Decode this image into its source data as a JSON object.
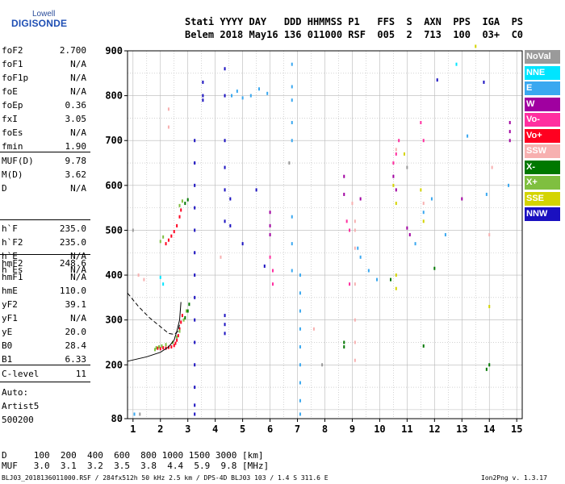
{
  "logo": {
    "line1": "Lowell",
    "line2": "DIGISONDE"
  },
  "header": {
    "line1": "Stati YYYY DAY   DDD HHMMSS P1   FFS  S  AXN  PPS  IGA  PS",
    "line2": "Belem 2018 May16 136 011000 RSF  005  2  713  100  03+  C0"
  },
  "params_group1": [
    {
      "name": "foF2",
      "value": "2.700"
    },
    {
      "name": "foF1",
      "value": "N/A"
    },
    {
      "name": "foF1p",
      "value": "N/A"
    },
    {
      "name": "foE",
      "value": "N/A"
    },
    {
      "name": "foEp",
      "value": "0.36"
    },
    {
      "name": "fxI",
      "value": "3.05"
    },
    {
      "name": "foEs",
      "value": "N/A"
    },
    {
      "name": "fmin",
      "value": "1.90"
    }
  ],
  "params_group2": [
    {
      "name": "MUF(D)",
      "value": "9.78"
    },
    {
      "name": "M(D)",
      "value": "3.62"
    },
    {
      "name": "D",
      "value": "N/A"
    }
  ],
  "params_group3": [
    {
      "name": "h`F",
      "value": "235.0"
    },
    {
      "name": "h`F2",
      "value": "235.0"
    },
    {
      "name": "h`E",
      "value": "N/A"
    },
    {
      "name": "h`Es",
      "value": "N/A"
    }
  ],
  "params_group4": [
    {
      "name": "hmF2",
      "value": "248.6"
    },
    {
      "name": "hmF1",
      "value": "N/A"
    },
    {
      "name": "hmE",
      "value": "110.0"
    },
    {
      "name": "yF2",
      "value": "39.1"
    },
    {
      "name": "yF1",
      "value": "N/A"
    },
    {
      "name": "yE",
      "value": "20.0"
    },
    {
      "name": "B0",
      "value": "28.4"
    },
    {
      "name": "B1",
      "value": "6.33"
    }
  ],
  "params_group5": [
    {
      "name": "C-level",
      "value": "11"
    }
  ],
  "auto": {
    "line1": "Auto:",
    "line2": "Artist5",
    "line3": "500200"
  },
  "legend": [
    {
      "label": "NoVal",
      "color": "#9a9a9a"
    },
    {
      "label": "NNE",
      "color": "#00e5ff"
    },
    {
      "label": "E",
      "color": "#3aa8f0"
    },
    {
      "label": "W",
      "color": "#a000a0"
    },
    {
      "label": "Vo-",
      "color": "#ff2fa0"
    },
    {
      "label": "Vo+",
      "color": "#ff0020"
    },
    {
      "label": "SSW",
      "color": "#f7b0b0"
    },
    {
      "label": "X-",
      "color": "#007800"
    },
    {
      "label": "X+",
      "color": "#7fbf40"
    },
    {
      "label": "SSE",
      "color": "#d4d400"
    },
    {
      "label": "NNW",
      "color": "#1a10c0"
    }
  ],
  "bottom_table": {
    "row1": "D     100  200  400  600  800 1000 1500 3000 [km]",
    "row2": "MUF   3.0  3.1  3.2  3.5  3.8  4.4  5.9  9.8 [MHz]"
  },
  "footer": {
    "left": "BLJ03_2018136011000.RSF / 284fx512h 50 kHz 2.5 km / DPS-4D BLJ03 103 / 1.4 S 311.6 E",
    "right": "Ion2Png v. 1.3.17"
  },
  "chart_data": {
    "type": "scatter",
    "xlim": [
      0.8,
      15.2
    ],
    "ylim": [
      80,
      900
    ],
    "x_ticks": [
      "1",
      "2",
      "3",
      "4",
      "5",
      "6",
      "7",
      "8",
      "9",
      "10",
      "11",
      "12",
      "13",
      "14",
      "15"
    ],
    "y_ticks": [
      "80",
      "200",
      "300",
      "400",
      "500",
      "600",
      "700",
      "800",
      "900"
    ],
    "grid": true,
    "series": [
      {
        "name": "Vo+",
        "color": "#ff0020",
        "points": [
          [
            1.9,
            237
          ],
          [
            2.0,
            236
          ],
          [
            2.1,
            238
          ],
          [
            2.2,
            237
          ],
          [
            2.3,
            239
          ],
          [
            2.4,
            240
          ],
          [
            2.5,
            243
          ],
          [
            2.55,
            248
          ],
          [
            2.6,
            255
          ],
          [
            2.65,
            265
          ],
          [
            2.7,
            280
          ],
          [
            2.75,
            295
          ],
          [
            2.8,
            310
          ],
          [
            2.2,
            470
          ],
          [
            2.3,
            478
          ],
          [
            2.4,
            487
          ],
          [
            2.5,
            497
          ],
          [
            2.6,
            510
          ],
          [
            2.7,
            530
          ],
          [
            2.75,
            545
          ]
        ]
      },
      {
        "name": "X+",
        "color": "#7fbf40",
        "points": [
          [
            1.8,
            234
          ],
          [
            1.85,
            238
          ],
          [
            1.95,
            240
          ],
          [
            2.05,
            242
          ],
          [
            2.2,
            245
          ],
          [
            2.45,
            250
          ],
          [
            2.6,
            262
          ],
          [
            2.7,
            275
          ],
          [
            2.85,
            300
          ],
          [
            2.95,
            320
          ],
          [
            2.0,
            475
          ],
          [
            2.1,
            485
          ],
          [
            2.7,
            555
          ],
          [
            2.8,
            565
          ]
        ]
      },
      {
        "name": "X-",
        "color": "#007800",
        "points": [
          [
            2.9,
            305
          ],
          [
            3.0,
            320
          ],
          [
            3.05,
            335
          ],
          [
            2.9,
            560
          ],
          [
            3.0,
            568
          ],
          [
            8.7,
            250
          ],
          [
            8.7,
            240
          ],
          [
            10.4,
            390
          ],
          [
            11.6,
            242
          ],
          [
            12.0,
            415
          ],
          [
            14.0,
            200
          ],
          [
            13.9,
            190
          ]
        ]
      },
      {
        "name": "NNW",
        "color": "#1a10c0",
        "points": [
          [
            3.25,
            700
          ],
          [
            3.25,
            650
          ],
          [
            3.25,
            600
          ],
          [
            3.25,
            550
          ],
          [
            3.25,
            500
          ],
          [
            3.25,
            450
          ],
          [
            3.25,
            400
          ],
          [
            3.25,
            350
          ],
          [
            3.25,
            300
          ],
          [
            3.25,
            250
          ],
          [
            3.25,
            200
          ],
          [
            3.25,
            150
          ],
          [
            3.25,
            110
          ],
          [
            3.25,
            90
          ],
          [
            3.55,
            830
          ],
          [
            3.55,
            800
          ],
          [
            3.55,
            790
          ],
          [
            4.35,
            860
          ],
          [
            4.35,
            800
          ],
          [
            4.35,
            700
          ],
          [
            4.35,
            640
          ],
          [
            4.35,
            590
          ],
          [
            4.35,
            520
          ],
          [
            4.35,
            310
          ],
          [
            4.35,
            290
          ],
          [
            4.35,
            270
          ],
          [
            4.55,
            570
          ],
          [
            4.55,
            510
          ],
          [
            5.5,
            590
          ],
          [
            5.8,
            420
          ],
          [
            5.0,
            470
          ],
          [
            12.1,
            835
          ],
          [
            13.8,
            830
          ]
        ]
      },
      {
        "name": "E",
        "color": "#3aa8f0",
        "points": [
          [
            1.05,
            90
          ],
          [
            4.6,
            800
          ],
          [
            4.8,
            810
          ],
          [
            5.0,
            795
          ],
          [
            5.3,
            800
          ],
          [
            5.6,
            815
          ],
          [
            5.9,
            805
          ],
          [
            6.8,
            870
          ],
          [
            6.8,
            820
          ],
          [
            6.8,
            790
          ],
          [
            6.8,
            740
          ],
          [
            6.8,
            700
          ],
          [
            6.8,
            530
          ],
          [
            6.8,
            470
          ],
          [
            6.8,
            410
          ],
          [
            7.1,
            400
          ],
          [
            7.1,
            360
          ],
          [
            7.1,
            320
          ],
          [
            7.1,
            280
          ],
          [
            7.1,
            240
          ],
          [
            7.1,
            200
          ],
          [
            7.1,
            160
          ],
          [
            7.1,
            120
          ],
          [
            7.1,
            90
          ],
          [
            9.2,
            460
          ],
          [
            9.3,
            440
          ],
          [
            9.6,
            410
          ],
          [
            9.9,
            390
          ],
          [
            11.3,
            470
          ],
          [
            11.6,
            540
          ],
          [
            11.9,
            570
          ],
          [
            12.4,
            490
          ],
          [
            13.2,
            710
          ],
          [
            14.7,
            600
          ],
          [
            13.9,
            580
          ]
        ]
      },
      {
        "name": "W",
        "color": "#a000a0",
        "points": [
          [
            6.0,
            540
          ],
          [
            6.0,
            510
          ],
          [
            6.0,
            490
          ],
          [
            8.7,
            580
          ],
          [
            8.7,
            620
          ],
          [
            9.3,
            570
          ],
          [
            10.5,
            620
          ],
          [
            10.6,
            590
          ],
          [
            11.0,
            505
          ],
          [
            11.1,
            490
          ],
          [
            13.0,
            570
          ],
          [
            14.75,
            740
          ],
          [
            14.75,
            720
          ],
          [
            14.75,
            700
          ]
        ]
      },
      {
        "name": "Vo-",
        "color": "#ff2fa0",
        "points": [
          [
            6.0,
            440
          ],
          [
            6.1,
            410
          ],
          [
            6.1,
            380
          ],
          [
            10.5,
            650
          ],
          [
            10.6,
            670
          ],
          [
            10.7,
            700
          ],
          [
            11.5,
            740
          ],
          [
            11.6,
            700
          ],
          [
            8.8,
            520
          ],
          [
            8.9,
            500
          ],
          [
            8.9,
            380
          ]
        ]
      },
      {
        "name": "SSW",
        "color": "#f7b0b0",
        "points": [
          [
            1.2,
            400
          ],
          [
            1.4,
            390
          ],
          [
            2.3,
            770
          ],
          [
            2.3,
            730
          ],
          [
            4.2,
            440
          ],
          [
            7.6,
            280
          ],
          [
            9.0,
            560
          ],
          [
            9.1,
            520
          ],
          [
            9.1,
            500
          ],
          [
            9.1,
            460
          ],
          [
            9.1,
            380
          ],
          [
            9.1,
            300
          ],
          [
            9.1,
            250
          ],
          [
            9.1,
            210
          ],
          [
            10.6,
            680
          ],
          [
            11.6,
            560
          ],
          [
            14.0,
            490
          ],
          [
            14.1,
            640
          ]
        ]
      },
      {
        "name": "SSE",
        "color": "#d4d400",
        "points": [
          [
            10.5,
            600
          ],
          [
            10.6,
            560
          ],
          [
            10.6,
            400
          ],
          [
            10.6,
            370
          ],
          [
            11.6,
            520
          ],
          [
            13.5,
            910
          ],
          [
            14.0,
            330
          ],
          [
            10.9,
            670
          ],
          [
            11.5,
            590
          ]
        ]
      },
      {
        "name": "NNE",
        "color": "#00e5ff",
        "points": [
          [
            2.0,
            395
          ],
          [
            2.1,
            380
          ],
          [
            12.8,
            870
          ]
        ]
      },
      {
        "name": "NoVal",
        "color": "#9a9a9a",
        "points": [
          [
            1.25,
            90
          ],
          [
            1.0,
            500
          ],
          [
            6.7,
            650
          ],
          [
            7.9,
            200
          ],
          [
            11.0,
            640
          ]
        ]
      }
    ],
    "curves": [
      {
        "name": "profile-solid",
        "style": "solid",
        "points": [
          [
            0.8,
            208
          ],
          [
            1.5,
            218
          ],
          [
            2.0,
            228
          ],
          [
            2.3,
            240
          ],
          [
            2.5,
            255
          ],
          [
            2.6,
            275
          ],
          [
            2.7,
            300
          ],
          [
            2.75,
            340
          ]
        ]
      },
      {
        "name": "profile-dashed",
        "style": "dashed",
        "points": [
          [
            0.8,
            360
          ],
          [
            1.2,
            330
          ],
          [
            1.6,
            305
          ],
          [
            2.0,
            285
          ],
          [
            2.3,
            270
          ],
          [
            2.5,
            268
          ],
          [
            2.65,
            275
          ],
          [
            2.7,
            290
          ]
        ]
      }
    ]
  }
}
